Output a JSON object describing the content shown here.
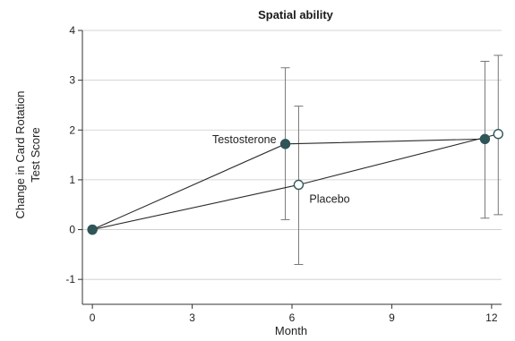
{
  "chart_data": {
    "type": "line",
    "title": "Spatial ability",
    "xlabel": "Month",
    "ylabel_lines": [
      "Change in Card Rotation",
      "Test Score"
    ],
    "xlim": [
      -0.3,
      12.3
    ],
    "ylim": [
      -1.5,
      4
    ],
    "x_ticks": [
      0,
      3,
      6,
      9,
      12
    ],
    "y_ticks": [
      -1,
      0,
      1,
      2,
      3,
      4
    ],
    "y_grid": true,
    "series": [
      {
        "name": "Testosterone",
        "marker": "filled",
        "color": "#2f5558",
        "points": [
          {
            "x": 0,
            "y": 0,
            "lo": null,
            "hi": null
          },
          {
            "x": 5.8,
            "y": 1.72,
            "lo": 0.2,
            "hi": 3.25
          },
          {
            "x": 11.8,
            "y": 1.82,
            "lo": 0.23,
            "hi": 3.38
          }
        ]
      },
      {
        "name": "Placebo",
        "marker": "open",
        "color": "#2f5558",
        "points": [
          {
            "x": 0,
            "y": 0,
            "lo": null,
            "hi": null
          },
          {
            "x": 6.2,
            "y": 0.9,
            "lo": -0.7,
            "hi": 2.48
          },
          {
            "x": 12.2,
            "y": 1.92,
            "lo": 0.3,
            "hi": 3.5
          }
        ]
      }
    ]
  }
}
